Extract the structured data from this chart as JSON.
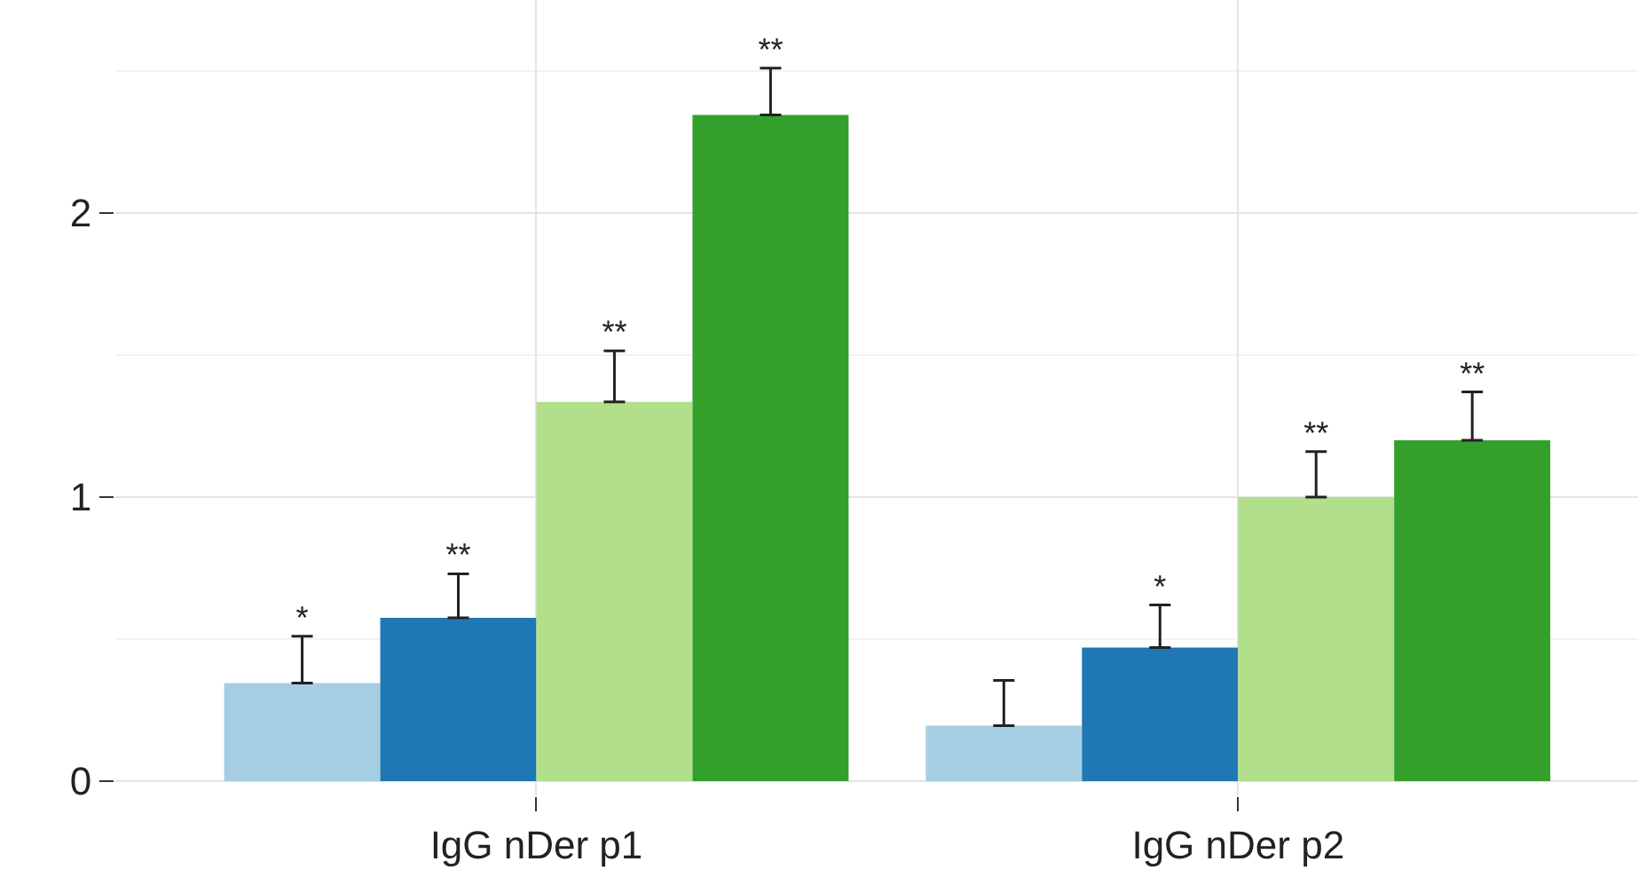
{
  "chart_data": {
    "type": "bar",
    "categories": [
      "IgG nDer p1",
      "IgG nDer p2"
    ],
    "series": [
      {
        "color": "#a6cee3",
        "values": [
          0.345,
          0.195
        ],
        "errors": [
          [
            0.345,
            0.51
          ],
          [
            0.195,
            0.355
          ]
        ],
        "value_labels": [
          "*",
          null
        ]
      },
      {
        "color": "#1f78b4",
        "values": [
          0.575,
          0.47
        ],
        "errors": [
          [
            0.575,
            0.73
          ],
          [
            0.47,
            0.62
          ]
        ],
        "value_labels": [
          "**",
          "*"
        ]
      },
      {
        "color": "#b2df8a",
        "values": [
          1.335,
          1.0
        ],
        "errors": [
          [
            1.335,
            1.515
          ],
          [
            1.0,
            1.16
          ]
        ],
        "value_labels": [
          "**",
          "**"
        ]
      },
      {
        "color": "#33a02c",
        "values": [
          2.345,
          1.2
        ],
        "errors": [
          [
            2.345,
            2.51
          ],
          [
            1.2,
            1.37
          ]
        ],
        "value_labels": [
          "**",
          "**"
        ]
      }
    ],
    "ylim": [
      -0.05,
      2.75
    ],
    "yticks": [
      0,
      1,
      2
    ],
    "grid": true
  }
}
